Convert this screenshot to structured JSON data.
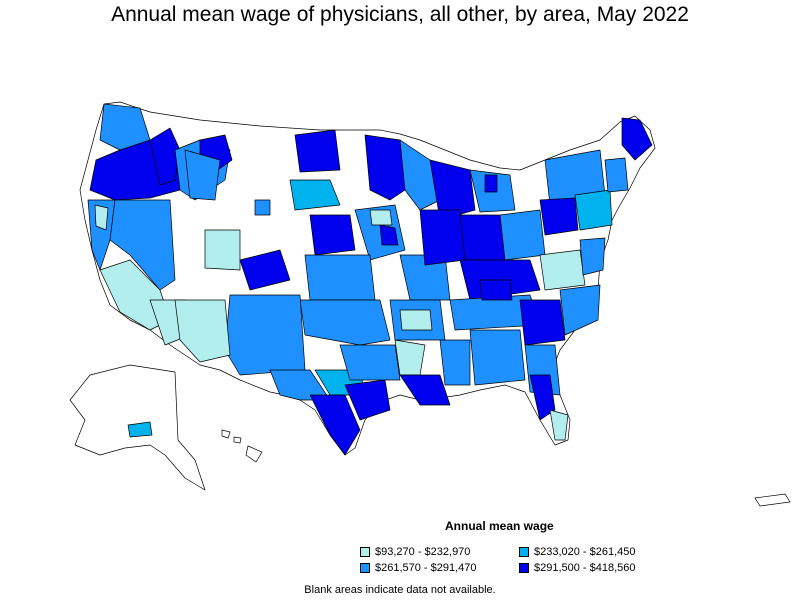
{
  "title": "Annual mean wage of physicians, all other, by area, May 2022",
  "legend": {
    "title": "Annual mean wage",
    "items": [
      {
        "label": "$93,270 - $232,970",
        "color": "#b2eeee"
      },
      {
        "label": "$233,020 - $261,450",
        "color": "#00b2ee"
      },
      {
        "label": "$261,570 - $291,470",
        "color": "#1e90ff"
      },
      {
        "label": "$291,500 - $418,560",
        "color": "#0000ee"
      }
    ]
  },
  "note": "Blank areas indicate data not available.",
  "colors": {
    "blank": "#ffffff",
    "border": "#000000"
  }
}
